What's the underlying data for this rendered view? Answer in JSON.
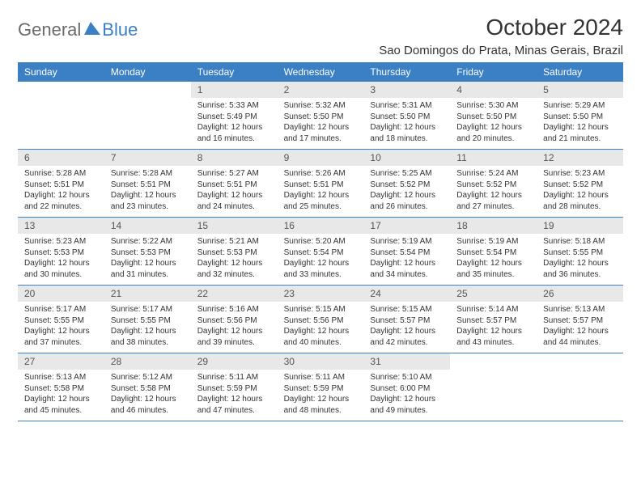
{
  "logo": {
    "general": "General",
    "blue": "Blue"
  },
  "title": "October 2024",
  "location": "Sao Domingos do Prata, Minas Gerais, Brazil",
  "weekdays": [
    "Sunday",
    "Monday",
    "Tuesday",
    "Wednesday",
    "Thursday",
    "Friday",
    "Saturday"
  ],
  "colors": {
    "header_bg": "#3b7fc4",
    "daynum_bg": "#e8e8e8"
  },
  "weeks": [
    [
      {
        "n": "",
        "l1": "",
        "l2": "",
        "l3": "",
        "l4": ""
      },
      {
        "n": "",
        "l1": "",
        "l2": "",
        "l3": "",
        "l4": ""
      },
      {
        "n": "1",
        "l1": "Sunrise: 5:33 AM",
        "l2": "Sunset: 5:49 PM",
        "l3": "Daylight: 12 hours",
        "l4": "and 16 minutes."
      },
      {
        "n": "2",
        "l1": "Sunrise: 5:32 AM",
        "l2": "Sunset: 5:50 PM",
        "l3": "Daylight: 12 hours",
        "l4": "and 17 minutes."
      },
      {
        "n": "3",
        "l1": "Sunrise: 5:31 AM",
        "l2": "Sunset: 5:50 PM",
        "l3": "Daylight: 12 hours",
        "l4": "and 18 minutes."
      },
      {
        "n": "4",
        "l1": "Sunrise: 5:30 AM",
        "l2": "Sunset: 5:50 PM",
        "l3": "Daylight: 12 hours",
        "l4": "and 20 minutes."
      },
      {
        "n": "5",
        "l1": "Sunrise: 5:29 AM",
        "l2": "Sunset: 5:50 PM",
        "l3": "Daylight: 12 hours",
        "l4": "and 21 minutes."
      }
    ],
    [
      {
        "n": "6",
        "l1": "Sunrise: 5:28 AM",
        "l2": "Sunset: 5:51 PM",
        "l3": "Daylight: 12 hours",
        "l4": "and 22 minutes."
      },
      {
        "n": "7",
        "l1": "Sunrise: 5:28 AM",
        "l2": "Sunset: 5:51 PM",
        "l3": "Daylight: 12 hours",
        "l4": "and 23 minutes."
      },
      {
        "n": "8",
        "l1": "Sunrise: 5:27 AM",
        "l2": "Sunset: 5:51 PM",
        "l3": "Daylight: 12 hours",
        "l4": "and 24 minutes."
      },
      {
        "n": "9",
        "l1": "Sunrise: 5:26 AM",
        "l2": "Sunset: 5:51 PM",
        "l3": "Daylight: 12 hours",
        "l4": "and 25 minutes."
      },
      {
        "n": "10",
        "l1": "Sunrise: 5:25 AM",
        "l2": "Sunset: 5:52 PM",
        "l3": "Daylight: 12 hours",
        "l4": "and 26 minutes."
      },
      {
        "n": "11",
        "l1": "Sunrise: 5:24 AM",
        "l2": "Sunset: 5:52 PM",
        "l3": "Daylight: 12 hours",
        "l4": "and 27 minutes."
      },
      {
        "n": "12",
        "l1": "Sunrise: 5:23 AM",
        "l2": "Sunset: 5:52 PM",
        "l3": "Daylight: 12 hours",
        "l4": "and 28 minutes."
      }
    ],
    [
      {
        "n": "13",
        "l1": "Sunrise: 5:23 AM",
        "l2": "Sunset: 5:53 PM",
        "l3": "Daylight: 12 hours",
        "l4": "and 30 minutes."
      },
      {
        "n": "14",
        "l1": "Sunrise: 5:22 AM",
        "l2": "Sunset: 5:53 PM",
        "l3": "Daylight: 12 hours",
        "l4": "and 31 minutes."
      },
      {
        "n": "15",
        "l1": "Sunrise: 5:21 AM",
        "l2": "Sunset: 5:53 PM",
        "l3": "Daylight: 12 hours",
        "l4": "and 32 minutes."
      },
      {
        "n": "16",
        "l1": "Sunrise: 5:20 AM",
        "l2": "Sunset: 5:54 PM",
        "l3": "Daylight: 12 hours",
        "l4": "and 33 minutes."
      },
      {
        "n": "17",
        "l1": "Sunrise: 5:19 AM",
        "l2": "Sunset: 5:54 PM",
        "l3": "Daylight: 12 hours",
        "l4": "and 34 minutes."
      },
      {
        "n": "18",
        "l1": "Sunrise: 5:19 AM",
        "l2": "Sunset: 5:54 PM",
        "l3": "Daylight: 12 hours",
        "l4": "and 35 minutes."
      },
      {
        "n": "19",
        "l1": "Sunrise: 5:18 AM",
        "l2": "Sunset: 5:55 PM",
        "l3": "Daylight: 12 hours",
        "l4": "and 36 minutes."
      }
    ],
    [
      {
        "n": "20",
        "l1": "Sunrise: 5:17 AM",
        "l2": "Sunset: 5:55 PM",
        "l3": "Daylight: 12 hours",
        "l4": "and 37 minutes."
      },
      {
        "n": "21",
        "l1": "Sunrise: 5:17 AM",
        "l2": "Sunset: 5:55 PM",
        "l3": "Daylight: 12 hours",
        "l4": "and 38 minutes."
      },
      {
        "n": "22",
        "l1": "Sunrise: 5:16 AM",
        "l2": "Sunset: 5:56 PM",
        "l3": "Daylight: 12 hours",
        "l4": "and 39 minutes."
      },
      {
        "n": "23",
        "l1": "Sunrise: 5:15 AM",
        "l2": "Sunset: 5:56 PM",
        "l3": "Daylight: 12 hours",
        "l4": "and 40 minutes."
      },
      {
        "n": "24",
        "l1": "Sunrise: 5:15 AM",
        "l2": "Sunset: 5:57 PM",
        "l3": "Daylight: 12 hours",
        "l4": "and 42 minutes."
      },
      {
        "n": "25",
        "l1": "Sunrise: 5:14 AM",
        "l2": "Sunset: 5:57 PM",
        "l3": "Daylight: 12 hours",
        "l4": "and 43 minutes."
      },
      {
        "n": "26",
        "l1": "Sunrise: 5:13 AM",
        "l2": "Sunset: 5:57 PM",
        "l3": "Daylight: 12 hours",
        "l4": "and 44 minutes."
      }
    ],
    [
      {
        "n": "27",
        "l1": "Sunrise: 5:13 AM",
        "l2": "Sunset: 5:58 PM",
        "l3": "Daylight: 12 hours",
        "l4": "and 45 minutes."
      },
      {
        "n": "28",
        "l1": "Sunrise: 5:12 AM",
        "l2": "Sunset: 5:58 PM",
        "l3": "Daylight: 12 hours",
        "l4": "and 46 minutes."
      },
      {
        "n": "29",
        "l1": "Sunrise: 5:11 AM",
        "l2": "Sunset: 5:59 PM",
        "l3": "Daylight: 12 hours",
        "l4": "and 47 minutes."
      },
      {
        "n": "30",
        "l1": "Sunrise: 5:11 AM",
        "l2": "Sunset: 5:59 PM",
        "l3": "Daylight: 12 hours",
        "l4": "and 48 minutes."
      },
      {
        "n": "31",
        "l1": "Sunrise: 5:10 AM",
        "l2": "Sunset: 6:00 PM",
        "l3": "Daylight: 12 hours",
        "l4": "and 49 minutes."
      },
      {
        "n": "",
        "l1": "",
        "l2": "",
        "l3": "",
        "l4": ""
      },
      {
        "n": "",
        "l1": "",
        "l2": "",
        "l3": "",
        "l4": ""
      }
    ]
  ]
}
